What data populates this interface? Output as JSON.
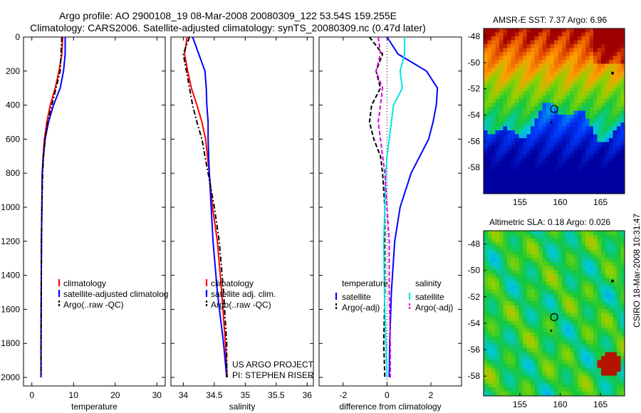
{
  "figure": {
    "title_line1": "Argo profile: AO 2900108_19 08-Mar-2008 20080309_122 53.54S 159.255E",
    "title_line2": "Climatology: CARS2006. Satellite-adjusted climatology: synTS_20080309.nc (0.47d later)",
    "credit": "CSIRO 18-Mar-2008 10:31:47",
    "project_line1": "US ARGO PROJECT",
    "project_line2": "PI: STEPHEN RISER"
  },
  "colors": {
    "climatology": "#ff0000",
    "satellite": "#0000ff",
    "argo": "#000000",
    "satellite_diff_salinity": "#00e5e5",
    "argo_adj_salinity": "#e000e0"
  },
  "chart_data": [
    {
      "type": "line",
      "id": "temperature",
      "xlabel": "temperature",
      "xlim": [
        -2,
        32
      ],
      "ylim": [
        0,
        2050
      ],
      "y_inverted": true,
      "xticks": [
        0,
        10,
        20,
        30
      ],
      "yticks": [
        0,
        200,
        400,
        600,
        800,
        1000,
        1200,
        1400,
        1600,
        1800,
        2000
      ],
      "legend": [
        "climatology",
        "satellite-adjusted climatolog",
        "Argo(..raw -QC)"
      ],
      "legend_position": "lower-center",
      "series": [
        {
          "name": "climatology",
          "style": "solid",
          "color": "#ff0000",
          "x": [
            7.4,
            7.2,
            6.5,
            5.6,
            4.4,
            3.6,
            3.0,
            2.7,
            2.5,
            2.4,
            2.3,
            2.25,
            2.2,
            2.2
          ],
          "y": [
            0,
            100,
            200,
            300,
            400,
            500,
            600,
            700,
            800,
            1000,
            1200,
            1500,
            1800,
            2000
          ]
        },
        {
          "name": "satellite-adjusted climatolog",
          "style": "solid",
          "color": "#0000ff",
          "x": [
            8.0,
            8.0,
            7.6,
            6.8,
            5.2,
            4.0,
            3.2,
            2.8,
            2.5,
            2.4,
            2.3,
            2.25,
            2.2,
            2.2
          ],
          "y": [
            0,
            100,
            200,
            300,
            400,
            500,
            600,
            700,
            800,
            1000,
            1200,
            1500,
            1800,
            2000
          ]
        },
        {
          "name": "Argo(..raw -QC)",
          "style": "dashdot",
          "color": "#000000",
          "x": [
            7.2,
            7.0,
            6.8,
            5.8,
            4.8,
            3.8,
            3.2,
            2.8,
            2.6,
            2.4,
            2.3,
            2.25,
            2.2,
            2.2
          ],
          "y": [
            0,
            100,
            200,
            300,
            400,
            500,
            600,
            700,
            800,
            1000,
            1200,
            1500,
            1800,
            2000
          ]
        }
      ]
    },
    {
      "type": "line",
      "id": "salinity",
      "xlabel": "salinity",
      "xlim": [
        33.8,
        36.1
      ],
      "ylim": [
        0,
        2050
      ],
      "y_inverted": true,
      "xticks": [
        34,
        34.5,
        35,
        35.5,
        36
      ],
      "legend": [
        "climatology",
        "satellite adj. clim.",
        "Argo(..raw -QC)"
      ],
      "legend_position": "lower-center",
      "series": [
        {
          "name": "climatology",
          "style": "solid",
          "color": "#ff0000",
          "x": [
            34.06,
            34.02,
            34.07,
            34.13,
            34.22,
            34.3,
            34.36,
            34.39,
            34.42,
            34.47,
            34.55,
            34.62,
            34.68,
            34.71
          ],
          "y": [
            0,
            100,
            200,
            300,
            400,
            500,
            600,
            700,
            800,
            1000,
            1200,
            1500,
            1800,
            2000
          ]
        },
        {
          "name": "satellite adj. clim.",
          "style": "solid",
          "color": "#0000ff",
          "x": [
            34.15,
            34.25,
            34.35,
            34.37,
            34.38,
            34.4,
            34.4,
            34.41,
            34.42,
            34.45,
            34.48,
            34.55,
            34.65,
            34.7
          ],
          "y": [
            0,
            100,
            200,
            300,
            400,
            500,
            600,
            700,
            800,
            1000,
            1200,
            1500,
            1800,
            2000
          ]
        },
        {
          "name": "Argo(..raw -QC)",
          "style": "dashdot",
          "color": "#000000",
          "x": [
            34.1,
            34.0,
            34.05,
            34.1,
            34.15,
            34.22,
            34.3,
            34.35,
            34.4,
            34.5,
            34.58,
            34.65,
            34.7,
            34.7
          ],
          "y": [
            0,
            100,
            200,
            300,
            400,
            500,
            600,
            700,
            800,
            1000,
            1200,
            1500,
            1800,
            2000
          ]
        }
      ]
    },
    {
      "type": "line",
      "id": "difference",
      "xlabel": "difference from climatology",
      "xlim": [
        -3.1,
        3.4
      ],
      "ylim": [
        0,
        2050
      ],
      "y_inverted": true,
      "xticks": [
        -2,
        0,
        2
      ],
      "zero_line": "dotted",
      "legend": [
        "temperature",
        "satellite",
        "Argo(-adj)",
        "salinity",
        "satellite",
        "Argo(-adj)"
      ],
      "legend_position": "lower-center",
      "series": [
        {
          "name": "temperature satellite",
          "style": "solid",
          "color": "#0000ff",
          "x": [
            0.0,
            0.5,
            1.8,
            2.3,
            2.25,
            2.1,
            1.9,
            1.5,
            1.1,
            0.6,
            0.35,
            0.2,
            0.12,
            0.1
          ],
          "y": [
            0,
            100,
            200,
            300,
            400,
            500,
            600,
            700,
            800,
            1000,
            1200,
            1500,
            1800,
            2000
          ]
        },
        {
          "name": "temperature Argo(-adj)",
          "style": "dashed",
          "color": "#000000",
          "x": [
            -0.8,
            -0.2,
            -0.5,
            -0.3,
            -0.7,
            -0.8,
            -0.6,
            -0.3,
            -0.2,
            -0.1,
            -0.1,
            -0.1,
            -0.15,
            -0.1
          ],
          "y": [
            0,
            100,
            200,
            300,
            400,
            500,
            600,
            700,
            800,
            1000,
            1200,
            1500,
            1800,
            2000
          ]
        },
        {
          "name": "salinity satellite",
          "style": "solid",
          "color": "#00e5e5",
          "x": [
            0.8,
            0.8,
            0.6,
            0.7,
            0.3,
            0.2,
            0.1,
            0.0,
            -0.05,
            -0.1,
            -0.15,
            -0.12,
            -0.05,
            0.0
          ],
          "y": [
            0,
            100,
            200,
            300,
            400,
            500,
            600,
            700,
            800,
            1000,
            1200,
            1500,
            1800,
            2000
          ]
        },
        {
          "name": "salinity Argo(-adj)",
          "style": "dashed",
          "color": "#e000e0",
          "x": [
            -0.4,
            -0.3,
            -0.5,
            -0.2,
            -0.3,
            -0.4,
            -0.3,
            -0.2,
            -0.1,
            0.0,
            0.1,
            0.1,
            0.15,
            0.15
          ],
          "y": [
            0,
            100,
            200,
            300,
            400,
            500,
            600,
            700,
            800,
            1000,
            1200,
            1500,
            1800,
            2000
          ]
        }
      ]
    },
    {
      "type": "heatmap",
      "id": "sst-map",
      "title": "AMSR-E SST: 7.37 Argo: 6.96",
      "xlim": [
        150.5,
        168
      ],
      "ylim": [
        -60,
        -47.4
      ],
      "xticks": [
        155,
        160,
        165
      ],
      "yticks": [
        -48,
        -50,
        -52,
        -54,
        -56,
        -58
      ],
      "profile_marker": {
        "lon": 159.255,
        "lat": -53.54
      }
    },
    {
      "type": "heatmap",
      "id": "sla-map",
      "title": "Altimetric SLA: 0.18 Argo: 0.026",
      "xlim": [
        150.5,
        168
      ],
      "ylim": [
        -59.5,
        -47
      ],
      "xticks": [
        155,
        160,
        165
      ],
      "yticks": [
        -48,
        -50,
        -52,
        -54,
        -56,
        -58
      ],
      "profile_marker": {
        "lon": 159.255,
        "lat": -53.54
      }
    }
  ]
}
